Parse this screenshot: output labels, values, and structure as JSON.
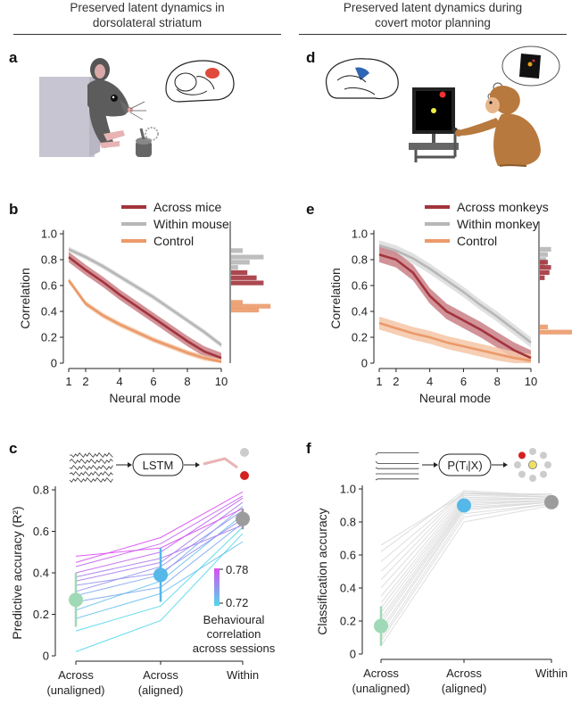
{
  "left_header": {
    "line1": "Preserved latent dynamics in",
    "line2": "dorsolateral striatum"
  },
  "right_header": {
    "line1": "Preserved latent dynamics during",
    "line2": "covert motor planning"
  },
  "panel_labels": {
    "a": "a",
    "b": "b",
    "c": "c",
    "d": "d",
    "e": "e",
    "f": "f"
  },
  "colors": {
    "across": "#a3343d",
    "within": "#b7b7b7",
    "control": "#eb9a6a",
    "unaligned_point": "#9fd9b5",
    "aligned_point": "#55b8e8",
    "within_point": "#9c9c9c",
    "grad_high": "#d84ef0",
    "grad_low": "#52d8ea"
  },
  "chart_data": [
    {
      "id": "b",
      "type": "line",
      "legend": [
        "Across mice",
        "Within mouse",
        "Control"
      ],
      "xlabel": "Neural mode",
      "ylabel": "Correlation",
      "xlim": [
        1,
        10
      ],
      "ylim": [
        0,
        1.0
      ],
      "xticks": [
        "1",
        "2",
        "4",
        "6",
        "8",
        "10"
      ],
      "yticks": [
        "0",
        "0.2",
        "0.4",
        "0.6",
        "0.8",
        "1.0"
      ],
      "x": [
        1,
        2,
        3,
        4,
        5,
        6,
        7,
        8,
        9,
        10
      ],
      "series": [
        {
          "name": "Across mice",
          "values": [
            0.82,
            0.72,
            0.63,
            0.53,
            0.44,
            0.35,
            0.26,
            0.17,
            0.09,
            0.04
          ],
          "band": 0.04
        },
        {
          "name": "Within mouse",
          "values": [
            0.88,
            0.82,
            0.75,
            0.67,
            0.59,
            0.51,
            0.42,
            0.33,
            0.24,
            0.14
          ],
          "band": 0.02
        },
        {
          "name": "Control",
          "values": [
            0.64,
            0.46,
            0.37,
            0.3,
            0.24,
            0.18,
            0.13,
            0.08,
            0.04,
            0.01
          ],
          "band": 0.02
        }
      ],
      "histograms": [
        {
          "name": "Within mouse",
          "bins": [
            0.87,
            0.82,
            0.78,
            0.74
          ],
          "widths": [
            0.25,
            0.7,
            0.4,
            0.15
          ]
        },
        {
          "name": "Across mice",
          "bins": [
            0.7,
            0.66,
            0.62
          ],
          "widths": [
            0.35,
            0.55,
            0.7
          ]
        },
        {
          "name": "Control",
          "bins": [
            0.47,
            0.44,
            0.41
          ],
          "widths": [
            0.25,
            0.85,
            0.6
          ]
        }
      ]
    },
    {
      "id": "e",
      "type": "line",
      "legend": [
        "Across monkeys",
        "Within monkey",
        "Control"
      ],
      "xlabel": "Neural mode",
      "ylabel": "Correlation",
      "xlim": [
        1,
        10
      ],
      "ylim": [
        0,
        1.0
      ],
      "xticks": [
        "1",
        "2",
        "4",
        "6",
        "8",
        "10"
      ],
      "yticks": [
        "0",
        "0.2",
        "0.4",
        "0.6",
        "0.8",
        "1.0"
      ],
      "x": [
        1,
        2,
        3,
        4,
        5,
        6,
        7,
        8,
        9,
        10
      ],
      "series": [
        {
          "name": "Across monkeys",
          "values": [
            0.84,
            0.8,
            0.7,
            0.52,
            0.4,
            0.33,
            0.26,
            0.18,
            0.1,
            0.04
          ],
          "band": 0.06
        },
        {
          "name": "Within monkey",
          "values": [
            0.91,
            0.87,
            0.81,
            0.73,
            0.64,
            0.55,
            0.45,
            0.36,
            0.26,
            0.16
          ],
          "band": 0.04
        },
        {
          "name": "Control",
          "values": [
            0.31,
            0.27,
            0.23,
            0.2,
            0.16,
            0.13,
            0.1,
            0.07,
            0.04,
            0.02
          ],
          "band": 0.05
        }
      ],
      "histograms": [
        {
          "name": "Within monkey",
          "bins": [
            0.88,
            0.84,
            0.8,
            0.76
          ],
          "widths": [
            0.35,
            0.25,
            0.2,
            0.15
          ]
        },
        {
          "name": "Across monkeys",
          "bins": [
            0.78,
            0.74,
            0.7,
            0.66
          ],
          "widths": [
            0.25,
            0.35,
            0.3,
            0.15
          ]
        },
        {
          "name": "Control",
          "bins": [
            0.28,
            0.24
          ],
          "widths": [
            0.25,
            1.0
          ]
        }
      ]
    },
    {
      "id": "c",
      "type": "line",
      "model_label": "LSTM",
      "ylabel": "Predictive accuracy (R²)",
      "ylim": [
        0,
        0.8
      ],
      "yticks": [
        "0",
        "0.2",
        "0.4",
        "0.6",
        "0.8"
      ],
      "categories": [
        "Across\n(unaligned)",
        "Across\n(aligned)",
        "Within"
      ],
      "colorbar": {
        "title_line1": "Behavioural",
        "title_line2": "correlation",
        "title_line3": "across sessions",
        "max_label": "0.78",
        "min_label": "0.72"
      },
      "means": [
        0.27,
        0.39,
        0.66
      ],
      "errors": [
        0.13,
        0.13,
        0.05
      ],
      "sessions": [
        [
          0.02,
          0.17,
          0.59
        ],
        [
          0.12,
          0.24,
          0.62
        ],
        [
          0.18,
          0.3,
          0.55
        ],
        [
          0.22,
          0.36,
          0.68
        ],
        [
          0.26,
          0.33,
          0.64
        ],
        [
          0.29,
          0.39,
          0.72
        ],
        [
          0.31,
          0.43,
          0.7
        ],
        [
          0.34,
          0.4,
          0.66
        ],
        [
          0.36,
          0.45,
          0.74
        ],
        [
          0.38,
          0.47,
          0.63
        ],
        [
          0.4,
          0.5,
          0.76
        ],
        [
          0.43,
          0.54,
          0.77
        ],
        [
          0.45,
          0.57,
          0.79
        ],
        [
          0.48,
          0.52,
          0.71
        ]
      ],
      "session_corr": [
        0.72,
        0.72,
        0.73,
        0.73,
        0.74,
        0.74,
        0.75,
        0.75,
        0.76,
        0.76,
        0.77,
        0.77,
        0.78,
        0.78
      ]
    },
    {
      "id": "f",
      "type": "line",
      "model_label": "P(Tᵢ|X)",
      "ylabel": "Classification accuracy",
      "ylim": [
        0,
        1.0
      ],
      "yticks": [
        "0",
        "0.2",
        "0.4",
        "0.6",
        "0.8",
        "1.0"
      ],
      "categories": [
        "Across\n(unaligned)",
        "Across\n(aligned)",
        "Within"
      ],
      "means": [
        0.17,
        0.9,
        0.92
      ],
      "errors": [
        0.12,
        0.03,
        0.01
      ],
      "sessions_unaligned": [
        0.05,
        0.08,
        0.1,
        0.13,
        0.15,
        0.18,
        0.2,
        0.22,
        0.25,
        0.28,
        0.31,
        0.35,
        0.4,
        0.45,
        0.5,
        0.56,
        0.62,
        0.66
      ],
      "sessions_aligned": [
        0.8,
        0.83,
        0.85,
        0.87,
        0.88,
        0.89,
        0.9,
        0.91,
        0.92,
        0.93,
        0.94,
        0.95,
        0.96,
        0.97,
        0.98,
        0.98,
        0.99,
        0.97
      ],
      "sessions_within": [
        0.9,
        0.91,
        0.91,
        0.92,
        0.92,
        0.92,
        0.93,
        0.93,
        0.93,
        0.94,
        0.94,
        0.94,
        0.95,
        0.95,
        0.95,
        0.96,
        0.96,
        0.97
      ]
    }
  ]
}
